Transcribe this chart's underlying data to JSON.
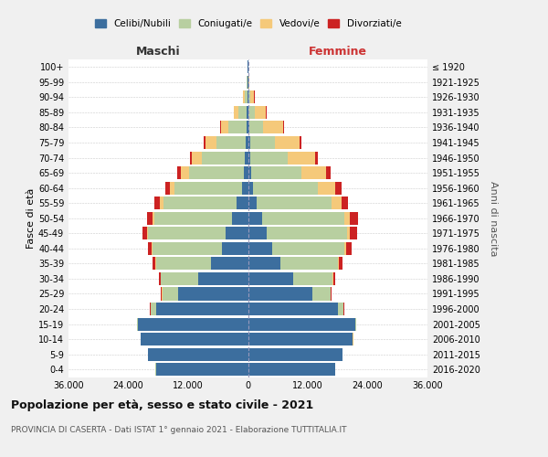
{
  "age_groups": [
    "0-4",
    "5-9",
    "10-14",
    "15-19",
    "20-24",
    "25-29",
    "30-34",
    "35-39",
    "40-44",
    "45-49",
    "50-54",
    "55-59",
    "60-64",
    "65-69",
    "70-74",
    "75-79",
    "80-84",
    "85-89",
    "90-94",
    "95-99",
    "100+"
  ],
  "birth_years": [
    "2016-2020",
    "2011-2015",
    "2006-2010",
    "2001-2005",
    "1996-2000",
    "1991-1995",
    "1986-1990",
    "1981-1985",
    "1976-1980",
    "1971-1975",
    "1966-1970",
    "1961-1965",
    "1956-1960",
    "1951-1955",
    "1946-1950",
    "1941-1945",
    "1936-1940",
    "1931-1935",
    "1926-1930",
    "1921-1925",
    "≤ 1920"
  ],
  "colors": {
    "celibi": "#3c6e9e",
    "coniugati": "#b8cfa0",
    "vedovi": "#f5c97a",
    "divorziati": "#cc2222"
  },
  "males": {
    "celibi": [
      18500,
      20000,
      21500,
      22000,
      18500,
      14000,
      10000,
      7500,
      5200,
      4500,
      3200,
      2200,
      1200,
      900,
      700,
      500,
      350,
      200,
      150,
      80,
      30
    ],
    "coniugati": [
      10,
      20,
      50,
      200,
      1000,
      3200,
      7500,
      11000,
      14000,
      15500,
      15500,
      14800,
      13500,
      11000,
      8500,
      5800,
      3500,
      1800,
      500,
      120,
      60
    ],
    "vedovi": [
      5,
      10,
      10,
      20,
      80,
      100,
      50,
      80,
      150,
      300,
      450,
      700,
      1000,
      1600,
      2000,
      2200,
      1600,
      800,
      300,
      80,
      20
    ],
    "divorziati": [
      5,
      5,
      5,
      10,
      50,
      150,
      300,
      500,
      700,
      950,
      1100,
      1000,
      900,
      700,
      500,
      350,
      200,
      100,
      50,
      20,
      5
    ]
  },
  "females": {
    "nubili": [
      17500,
      19000,
      21000,
      21500,
      18000,
      13000,
      9000,
      6500,
      4800,
      3800,
      2800,
      1800,
      1000,
      700,
      500,
      400,
      250,
      150,
      100,
      50,
      20
    ],
    "coniugati": [
      10,
      25,
      60,
      250,
      1100,
      3500,
      8000,
      11500,
      14500,
      16000,
      16500,
      15000,
      13000,
      10000,
      7500,
      5000,
      2800,
      1200,
      350,
      80,
      30
    ],
    "vedove": [
      5,
      10,
      10,
      20,
      60,
      80,
      100,
      180,
      350,
      700,
      1200,
      2000,
      3500,
      5000,
      5500,
      5000,
      4000,
      2200,
      800,
      200,
      50
    ],
    "divorziate": [
      5,
      5,
      5,
      20,
      80,
      200,
      400,
      700,
      1100,
      1400,
      1500,
      1300,
      1200,
      900,
      600,
      400,
      250,
      150,
      60,
      20,
      5
    ]
  },
  "title": "Popolazione per età, sesso e stato civile - 2021",
  "subtitle": "PROVINCIA DI CASERTA - Dati ISTAT 1° gennaio 2021 - Elaborazione TUTTITALIA.IT",
  "label_maschi": "Maschi",
  "label_femmine": "Femmine",
  "ylabel_left": "Fasce di età",
  "ylabel_right": "Anni di nascita",
  "legend_labels": [
    "Celibi/Nubili",
    "Coniugati/e",
    "Vedovi/e",
    "Divorziati/e"
  ],
  "xlim": 36000,
  "xticks": [
    -36000,
    -24000,
    -12000,
    0,
    12000,
    24000,
    36000
  ],
  "bg_color": "#f0f0f0",
  "plot_bg": "#ffffff"
}
